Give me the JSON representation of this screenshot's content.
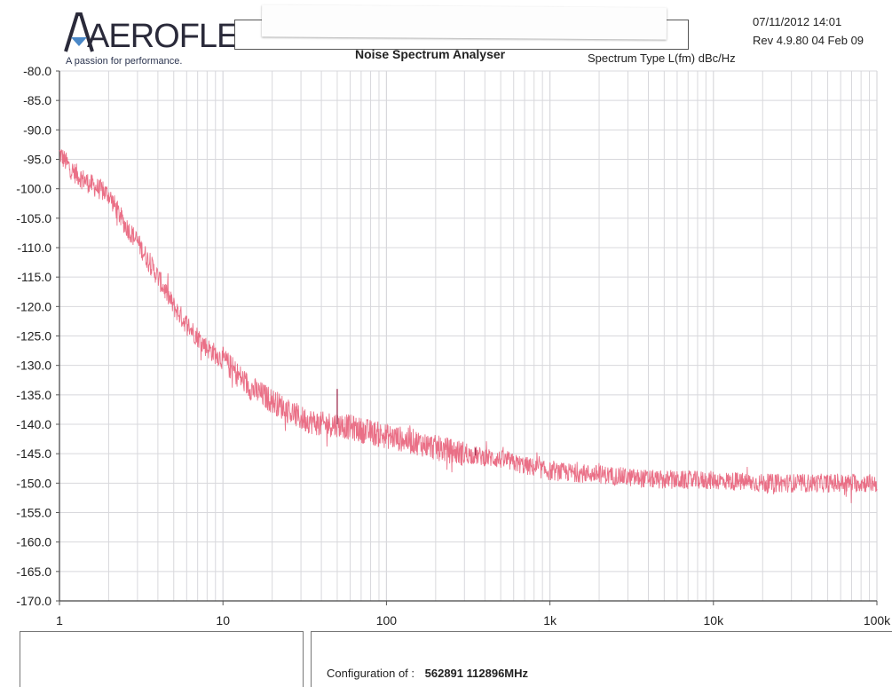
{
  "header": {
    "brand": "AEROFLEX",
    "tagline": "A passion for performance.",
    "title": "Noise Spectrum Analyser",
    "spectrum_type": "Spectrum Type  L(fm) dBc/Hz",
    "date": "07/11/2012  14:01",
    "revision": "Rev 4.9.80 04 Feb 09"
  },
  "footer": {
    "config_label": "Configuration of :",
    "config_value": "562891 112896MHz"
  },
  "colors": {
    "trace": "#e8607a",
    "spike": "#a03050",
    "grid": "#d8d8dc",
    "logo_accent": "#4a88c8"
  },
  "chart_data": {
    "type": "line",
    "title": "Noise Spectrum Analyser",
    "xscale": "log",
    "xlim": [
      1,
      100000
    ],
    "ylim": [
      -170,
      -80
    ],
    "grid": true,
    "x_tick_values": [
      1,
      10,
      100,
      1000,
      10000,
      100000
    ],
    "x_tick_labels": [
      "1",
      "10",
      "100",
      "1k",
      "10k",
      "100k"
    ],
    "y_tick_values": [
      -80,
      -85,
      -90,
      -95,
      -100,
      -105,
      -110,
      -115,
      -120,
      -125,
      -130,
      -135,
      -140,
      -145,
      -150,
      -155,
      -160,
      -165,
      -170
    ],
    "y_tick_labels": [
      "-80.0",
      "-85.0",
      "-90.0",
      "-95.0",
      "-100.0",
      "-105.0",
      "-110.0",
      "-115.0",
      "-120.0",
      "-125.0",
      "-130.0",
      "-135.0",
      "-140.0",
      "-145.0",
      "-150.0",
      "-155.0",
      "-160.0",
      "-165.0",
      "-170.0"
    ],
    "series": [
      {
        "x": [
          1,
          1.2,
          1.5,
          2,
          2.5,
          3,
          4,
          5,
          6,
          8,
          10,
          15,
          20,
          30,
          40,
          50,
          70,
          100,
          150,
          200,
          300,
          500,
          700,
          1000,
          2000,
          3000,
          5000,
          10000,
          20000,
          50000,
          100000
        ],
        "y": [
          -94,
          -97,
          -99,
          -101,
          -106,
          -109,
          -115,
          -120,
          -123,
          -127,
          -129,
          -134,
          -136,
          -139,
          -140,
          -140,
          -141,
          -142,
          -143,
          -144,
          -145,
          -146,
          -147,
          -148,
          -148.5,
          -149,
          -149.5,
          -149.5,
          -150,
          -150,
          -150
        ]
      }
    ],
    "spikes": [
      {
        "x": 50,
        "y": -134
      },
      {
        "x": 350,
        "y": -144
      }
    ]
  }
}
